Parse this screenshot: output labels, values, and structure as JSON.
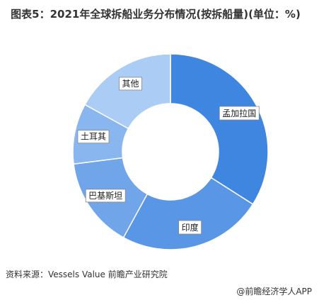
{
  "chart_data": {
    "type": "donut",
    "title": "图表5：2021年全球拆船业务分布情况(按拆船量)(单位：%)",
    "categories": [
      "孟加拉国",
      "印度",
      "巴基斯坦",
      "土耳其",
      "其他"
    ],
    "values": [
      34,
      24,
      15,
      10,
      17
    ],
    "colors": [
      "#3f86e0",
      "#5a96e6",
      "#70a5ea",
      "#89b6ef",
      "#abccf5"
    ],
    "source": "资料来源：Vessels Value 前瞻产业研究院",
    "footer": "@前瞻经济学人APP"
  }
}
